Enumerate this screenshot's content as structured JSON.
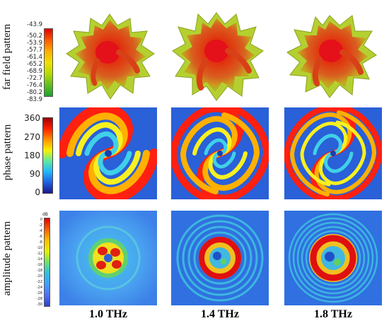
{
  "rows": [
    {
      "label": "far field pattern"
    },
    {
      "label": "phase pattern"
    },
    {
      "label": "amplitude pattern"
    }
  ],
  "far_field_colorbar": {
    "ticks": [
      "-43.9",
      "-50.2",
      "-53.9",
      "-57.7",
      "-61.4",
      "-65.2",
      "-68.9",
      "-72.7",
      "-76.4",
      "-80.2",
      "-83.9"
    ]
  },
  "phase_colorbar": {
    "ticks": [
      "360",
      "270",
      "180",
      "90",
      "0"
    ]
  },
  "amplitude_colorbar": {
    "unit": "dB",
    "ticks": [
      "0",
      "-2",
      "-4",
      "-6",
      "-8",
      "-10",
      "-12",
      "-14",
      "-16",
      "-18",
      "-20",
      "-22",
      "-24",
      "-26",
      "-28",
      "-30"
    ]
  },
  "columns": [
    {
      "frequency": "1.0 THz"
    },
    {
      "frequency": "1.4 THz"
    },
    {
      "frequency": "1.8 THz"
    }
  ]
}
